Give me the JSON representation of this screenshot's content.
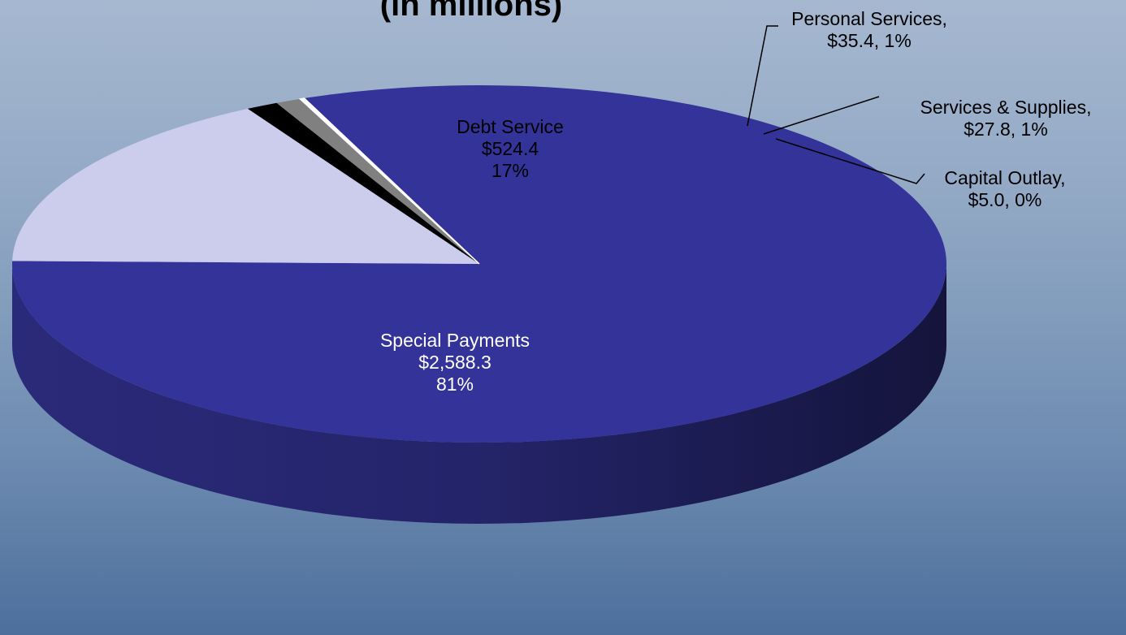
{
  "chart_data": {
    "type": "pie",
    "style": "3d",
    "title": "(in millions)",
    "slices": [
      {
        "name": "Special Payments",
        "value_label": "$2,588.3",
        "pct_label": "81%",
        "value": 2588.3,
        "color": "#333399"
      },
      {
        "name": "Debt Service",
        "value_label": "$524.4",
        "pct_label": "17%",
        "value": 524.4,
        "color": "#ccccec"
      },
      {
        "name": "Personal Services,",
        "value_label": "$35.4, 1%",
        "value": 35.4,
        "color": "#000000"
      },
      {
        "name": "Services & Supplies,",
        "value_label": "$27.8, 1%",
        "value": 27.8,
        "color": "#808080"
      },
      {
        "name": "Capital Outlay,",
        "value_label": "$5.0, 0%",
        "value": 5.0,
        "color": "#ffffff"
      }
    ]
  }
}
